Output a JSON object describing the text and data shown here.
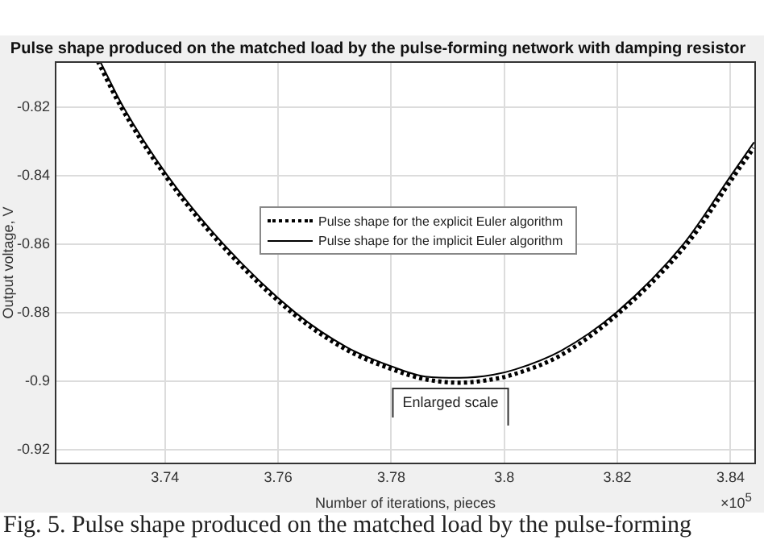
{
  "chart_data": {
    "type": "line",
    "title": "Pulse shape produced on the matched load by the pulse-forming network with damping resistor",
    "xlabel": "Number of iterations, pieces",
    "ylabel": "Output voltage, V",
    "xlim": [
      3.7205,
      3.8445
    ],
    "xticks": [
      3.74,
      3.76,
      3.78,
      {
        "value": 3.8,
        "label": "3.8"
      },
      3.82,
      3.84
    ],
    "ylim": [
      -0.9243,
      -0.8067
    ],
    "yticks": [
      -0.92,
      {
        "value": -0.9,
        "label": "-0.9"
      },
      -0.88,
      -0.86,
      -0.84,
      -0.82
    ],
    "grid": true,
    "legend": "top",
    "marker": "none",
    "series": [
      {
        "name": "Pulse shape for the explicit Euler algorithm",
        "color": "#000000",
        "line_style": "dotted",
        "x": [
          3.7281,
          3.7322,
          3.74,
          3.7498,
          3.7624,
          3.7722,
          3.78,
          3.786,
          3.7921,
          3.798,
          3.8018,
          3.81,
          3.8204,
          3.8323,
          3.8407,
          3.8441
        ],
        "values": [
          -0.8067,
          -0.82,
          -0.84,
          -0.86,
          -0.88,
          -0.891,
          -0.8965,
          -0.8995,
          -0.9005,
          -0.8995,
          -0.898,
          -0.8925,
          -0.88,
          -0.86,
          -0.84,
          -0.832
        ]
      },
      {
        "name": "Pulse shape for the implicit Euler algorithm",
        "color": "#000000",
        "line_style": "solid",
        "x": [
          3.7285,
          3.7326,
          3.7404,
          3.7503,
          3.763,
          3.7722,
          3.78,
          3.786,
          3.7921,
          3.798,
          3.8018,
          3.81,
          3.8198,
          3.8317,
          3.8401,
          3.8441
        ],
        "values": [
          -0.8067,
          -0.82,
          -0.84,
          -0.86,
          -0.88,
          -0.8902,
          -0.8957,
          -0.8987,
          -0.8991,
          -0.8982,
          -0.8967,
          -0.8912,
          -0.88,
          -0.86,
          -0.84,
          -0.8305
        ]
      }
    ],
    "annotations": [
      "Enlarged scale",
      "×10$^{5}$",
      "Fig. 5.   Pulse shape produced on the matched load by the pulse-forming"
    ]
  }
}
